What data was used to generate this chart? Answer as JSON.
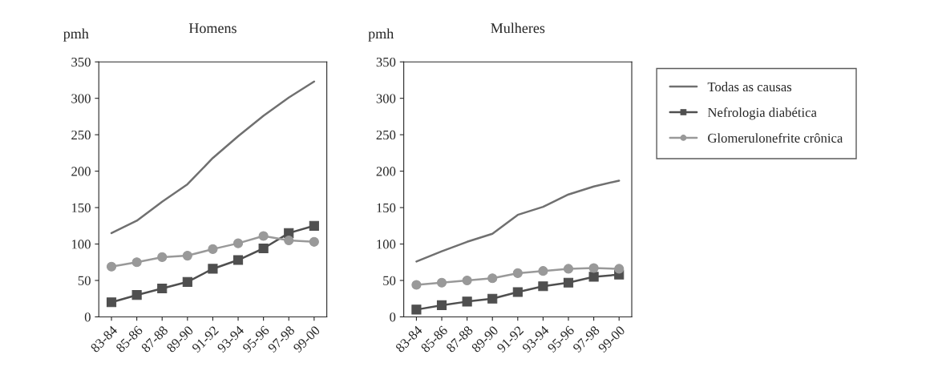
{
  "chart_data": [
    {
      "type": "line",
      "title": "Homens",
      "ylabel": "pmh",
      "categories": [
        "83-84",
        "85-86",
        "87-88",
        "89-90",
        "91-92",
        "93-94",
        "95-96",
        "97-98",
        "99-00"
      ],
      "ylim": [
        0,
        350
      ],
      "yticks": [
        0,
        50,
        100,
        150,
        200,
        250,
        300,
        350
      ],
      "legend": false,
      "grid": false,
      "series": [
        {
          "color": "#707070",
          "marker": "none",
          "values": [
            115,
            132,
            158,
            182,
            218,
            248,
            276,
            301,
            323
          ]
        },
        {
          "color": "#4f4f4f",
          "marker": "square",
          "values": [
            20,
            30,
            39,
            48,
            66,
            78,
            94,
            115,
            125
          ]
        },
        {
          "color": "#999999",
          "marker": "circle",
          "values": [
            69,
            75,
            82,
            84,
            93,
            101,
            111,
            105,
            103
          ]
        }
      ]
    },
    {
      "type": "line",
      "title": "Mulheres",
      "ylabel": "pmh",
      "categories": [
        "83-84",
        "85-86",
        "87-88",
        "89-90",
        "91-92",
        "93-94",
        "95-96",
        "97-98",
        "99-00"
      ],
      "ylim": [
        0,
        350
      ],
      "yticks": [
        0,
        50,
        100,
        150,
        200,
        250,
        300,
        350
      ],
      "legend": "right",
      "grid": false,
      "series": [
        {
          "name": "Todas as causas",
          "color": "#707070",
          "marker": "none",
          "values": [
            76,
            90,
            103,
            114,
            140,
            151,
            168,
            179,
            187
          ]
        },
        {
          "name": "Nefrologia diabética",
          "color": "#4f4f4f",
          "marker": "square",
          "values": [
            10,
            16,
            21,
            25,
            34,
            42,
            47,
            55,
            58
          ]
        },
        {
          "name": "Glomerulonefrite crônica",
          "color": "#999999",
          "marker": "circle",
          "values": [
            44,
            47,
            50,
            53,
            60,
            63,
            66,
            67,
            66
          ]
        }
      ]
    }
  ]
}
